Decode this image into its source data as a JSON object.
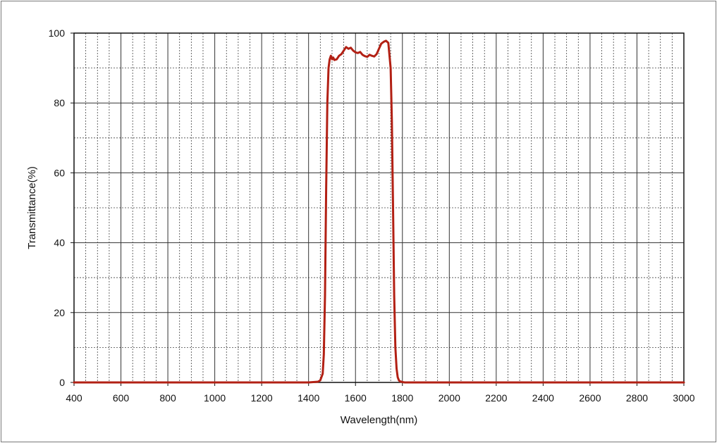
{
  "chart_data": {
    "type": "line",
    "xlabel": "Wavelength(nm)",
    "ylabel": "Transmittance(%)",
    "xlim": [
      400,
      3000
    ],
    "ylim": [
      0,
      100
    ],
    "x_ticks": [
      400,
      600,
      800,
      1000,
      1200,
      1400,
      1600,
      1800,
      2000,
      2200,
      2400,
      2600,
      2800,
      3000
    ],
    "y_ticks": [
      0,
      20,
      40,
      60,
      80,
      100
    ],
    "x_tick_labels": [
      "400",
      "600",
      "800",
      "1000",
      "1200",
      "1400",
      "1600",
      "1800",
      "2000",
      "2200",
      "2400",
      "2600",
      "2800",
      "3000"
    ],
    "y_tick_labels": [
      "0",
      "20",
      "40",
      "60",
      "80",
      "100"
    ],
    "grid": true,
    "minor_grid_x_step": 50,
    "minor_grid_y_step": 10,
    "legend": "none",
    "series": [
      {
        "color": "#b22014",
        "x": [
          400,
          1400,
          1440,
          1450,
          1460,
          1465,
          1470,
          1475,
          1480,
          1485,
          1490,
          1495,
          1500,
          1505,
          1510,
          1520,
          1530,
          1540,
          1550,
          1560,
          1570,
          1580,
          1590,
          1600,
          1610,
          1620,
          1630,
          1640,
          1650,
          1660,
          1670,
          1680,
          1690,
          1700,
          1710,
          1720,
          1730,
          1740,
          1750,
          1755,
          1760,
          1765,
          1770,
          1775,
          1780,
          1785,
          1790,
          1795,
          1800,
          1810,
          1820,
          1840,
          1860,
          3000
        ],
        "values": [
          0,
          0,
          0.2,
          0.6,
          2.5,
          8,
          25,
          55,
          80,
          90,
          92.5,
          93.5,
          92.5,
          93,
          92.3,
          92.5,
          93.5,
          94,
          95,
          96,
          95.5,
          95.8,
          95,
          94.5,
          94.3,
          94.6,
          93.8,
          93.4,
          93.2,
          93.8,
          93.5,
          93.3,
          94,
          95.5,
          97,
          97.5,
          97.8,
          97.2,
          90,
          75,
          50,
          25,
          10,
          4,
          1.5,
          0.6,
          0.3,
          0.2,
          0.1,
          0,
          0,
          0,
          0,
          0
        ]
      }
    ]
  }
}
